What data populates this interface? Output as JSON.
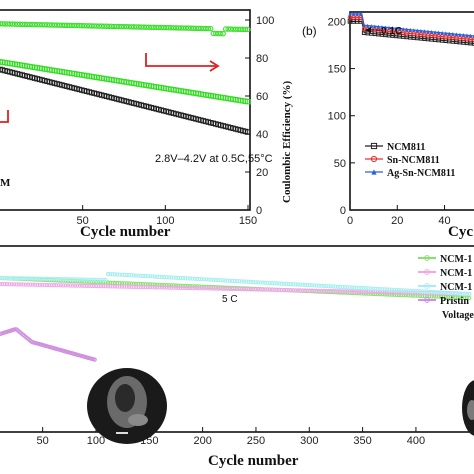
{
  "chart_data": [
    {
      "type": "scatter",
      "panel": "left-top",
      "xlabel": "Cycle number",
      "y2label": "Coulombic Efficiency (%)",
      "xlim": [
        0,
        150
      ],
      "y2lim": [
        0,
        100
      ],
      "x_ticks": [
        "50",
        "100",
        "150"
      ],
      "y2_ticks": [
        "0",
        "20",
        "40",
        "60",
        "80",
        "100"
      ],
      "condition_text": "2.8V–4.2V at 0.5C,55°C",
      "legend_fragment": "M",
      "colors": {
        "green": "#33dd22",
        "black": "#222222",
        "arrow": "#e02020"
      },
      "series": [
        {
          "marker": "square",
          "color": "#33dd22",
          "x": [
            0,
            150
          ],
          "y": [
            78,
            57
          ]
        },
        {
          "marker": "square",
          "color": "#222222",
          "x": [
            0,
            150
          ],
          "y": [
            74,
            41
          ]
        },
        {
          "marker": "circle",
          "color": "#33dd22",
          "x": [
            0,
            150
          ],
          "y": [
            98,
            95
          ]
        }
      ]
    },
    {
      "type": "line",
      "panel": "right-top",
      "panel_label": "(b)",
      "xlabel": "Cyc",
      "x_ticks": [
        "0",
        "20",
        "40"
      ],
      "y_ticks": [
        "0",
        "50",
        "100",
        "150",
        "200"
      ],
      "xlim": [
        0,
        55
      ],
      "ylim": [
        0,
        210
      ],
      "annotation": "0.1C",
      "series": [
        {
          "name": "NCM811",
          "marker": "square",
          "color": "#222222",
          "x": [
            0,
            5,
            6,
            55
          ],
          "y": [
            200,
            200,
            188,
            176
          ]
        },
        {
          "name": "Sn-NCM811",
          "marker": "circle",
          "color": "#e53030",
          "x": [
            0,
            5,
            6,
            55
          ],
          "y": [
            204,
            204,
            192,
            180
          ]
        },
        {
          "name": "Ag-Sn-NCM811",
          "marker": "triangle",
          "color": "#2a5fd8",
          "x": [
            0,
            5,
            6,
            55
          ],
          "y": [
            208,
            208,
            196,
            184
          ]
        }
      ]
    },
    {
      "type": "scatter",
      "panel": "bottom",
      "xlabel": "Cycle number",
      "xlim": [
        10,
        450
      ],
      "x_ticks": [
        "50",
        "100",
        "150",
        "200",
        "250",
        "300",
        "350",
        "400"
      ],
      "rate_text": "5 C",
      "legend": [
        "NCM-1",
        "NCM-1",
        "NCM-1",
        "Pristin",
        "Voltage"
      ],
      "colors": {
        "green": "#88e070",
        "pink": "#f0a8e8",
        "cyan": "#a8eef0",
        "purple": "#d090e0"
      },
      "series": [
        {
          "color": "#88e070",
          "x": [
            10,
            450
          ],
          "y": [
            168,
            148
          ]
        },
        {
          "color": "#f0a8e8",
          "x": [
            10,
            450
          ],
          "y": [
            162,
            152
          ]
        },
        {
          "color": "#a8eef0",
          "x": [
            10,
            450
          ],
          "y": [
            178,
            152
          ]
        },
        {
          "color": "#d090e0",
          "x": [
            10,
            25,
            40,
            60,
            80,
            100
          ],
          "y": [
            112,
            117,
            104,
            98,
            92,
            86
          ]
        }
      ]
    }
  ]
}
